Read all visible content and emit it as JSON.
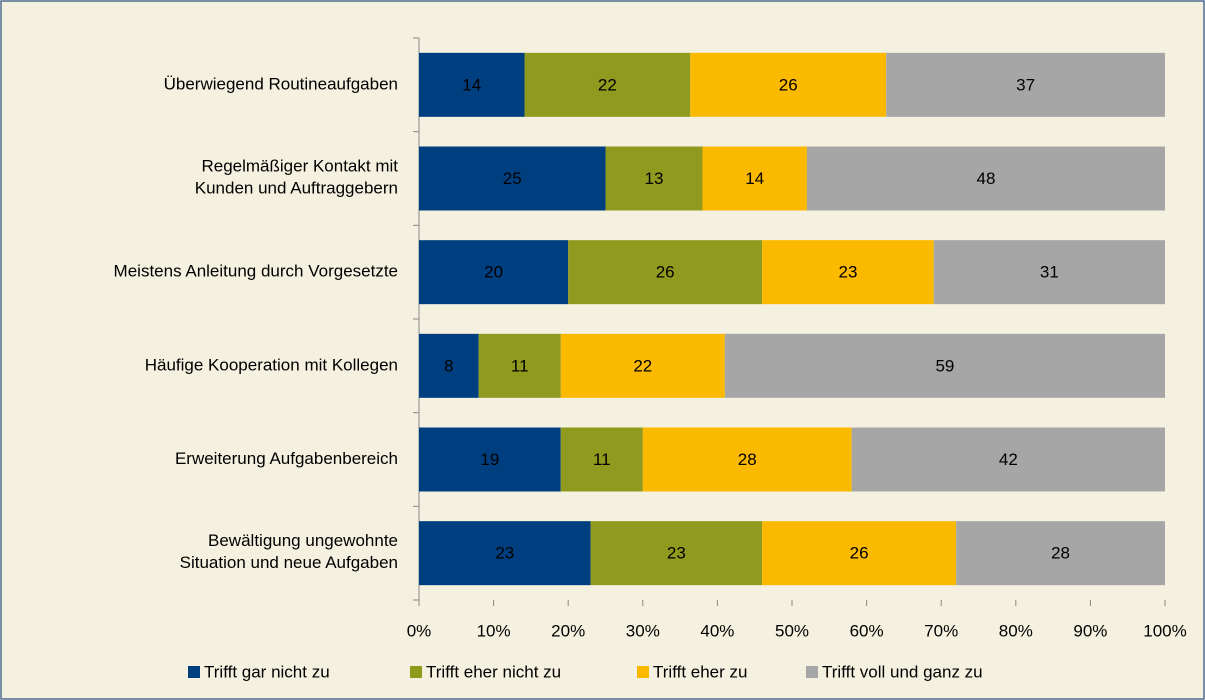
{
  "chart_data": {
    "type": "bar",
    "orientation": "horizontal",
    "stacked": "percent",
    "categories": [
      "Überwiegend Routineaufgaben",
      "Regelmäßiger Kontakt mit\nKunden und Auftraggebern",
      "Meistens Anleitung durch Vorgesetzte",
      "Häufige Kooperation mit Kollegen",
      "Erweiterung Aufgabenbereich",
      "Bewältigung ungewohnte\nSituation und neue Aufgaben"
    ],
    "series": [
      {
        "name": "Trifft gar nicht zu",
        "color": "#003f7f",
        "label_color": "#ffffff",
        "values": [
          14,
          25,
          20,
          8,
          19,
          23
        ]
      },
      {
        "name": "Trifft eher nicht zu",
        "color": "#8f9a1e",
        "label_color": "#000000",
        "values": [
          22,
          13,
          26,
          11,
          11,
          23
        ]
      },
      {
        "name": "Trifft eher zu",
        "color": "#fbb900",
        "label_color": "#000000",
        "values": [
          26,
          14,
          23,
          22,
          28,
          26
        ]
      },
      {
        "name": "Trifft voll und ganz zu",
        "color": "#a6a6a6",
        "label_color": "#000000",
        "values": [
          37,
          48,
          31,
          59,
          42,
          28
        ]
      }
    ],
    "xlim": [
      0,
      100
    ],
    "xticks": [
      {
        "value": 0,
        "label": "0%"
      },
      {
        "value": 10,
        "label": "10%"
      },
      {
        "value": 20,
        "label": "20%"
      },
      {
        "value": 30,
        "label": "30%"
      },
      {
        "value": 40,
        "label": "40%"
      },
      {
        "value": 50,
        "label": "50%"
      },
      {
        "value": 60,
        "label": "60%"
      },
      {
        "value": 70,
        "label": "70%"
      },
      {
        "value": 80,
        "label": "80%"
      },
      {
        "value": 90,
        "label": "90%"
      },
      {
        "value": 100,
        "label": "100%"
      }
    ],
    "legend": "bottom",
    "grid": false
  }
}
